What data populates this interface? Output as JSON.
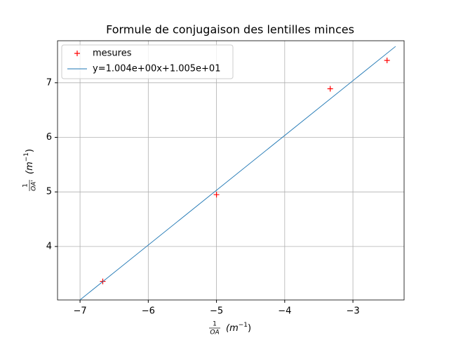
{
  "chart_data": {
    "type": "scatter_fit",
    "title": "Formule de conjugaison des lentilles minces",
    "xlabel": {
      "numerator": "1",
      "denominator": "OA",
      "unit": "(m",
      "exponent": "−1",
      "close": ")"
    },
    "ylabel": {
      "numerator": "1",
      "denominator": "OA'",
      "unit": "(m",
      "exponent": "−1",
      "close": ")"
    },
    "series": [
      {
        "name": "mesures",
        "kind": "markers",
        "color": "#ff0000",
        "x": [
          -6.667,
          -5,
          -3.333,
          -2.5
        ],
        "values": [
          3.36,
          4.95,
          6.89,
          7.41
        ]
      },
      {
        "name": "y=1.004e+00x+1.005e+01",
        "kind": "line",
        "color": "#1f77b4",
        "x": [
          -7,
          -2.375
        ],
        "values": [
          3.022,
          7.666
        ]
      }
    ],
    "xlim": [
      -7.33,
      -2.25
    ],
    "ylim": [
      3.02,
      7.77
    ],
    "xticks": [
      {
        "value": -7,
        "label": "−7"
      },
      {
        "value": -6,
        "label": "−6"
      },
      {
        "value": -5,
        "label": "−5"
      },
      {
        "value": -4,
        "label": "−4"
      },
      {
        "value": -3,
        "label": "−3"
      }
    ],
    "yticks": [
      4,
      5,
      6,
      7
    ],
    "grid": true,
    "legend": "upper-left"
  }
}
